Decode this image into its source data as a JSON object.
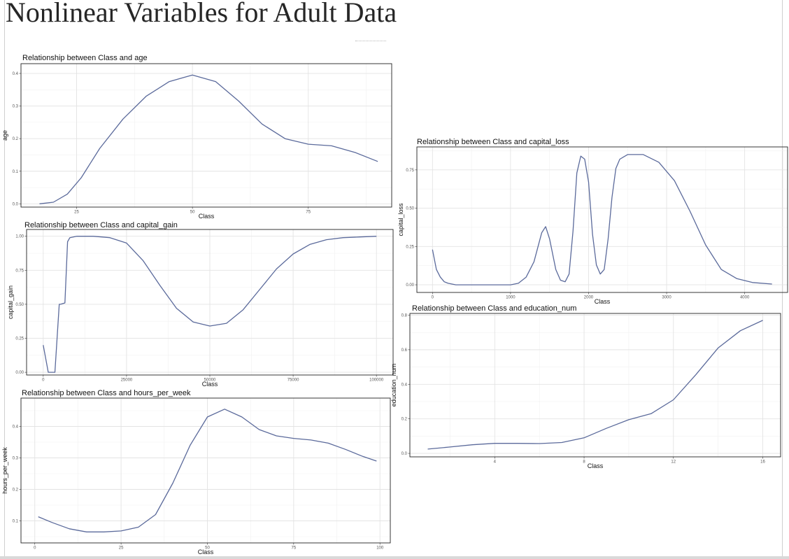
{
  "page": {
    "title": "Nonlinear Variables for Adult Data"
  },
  "chart_data": [
    {
      "id": "age",
      "type": "line",
      "title": "Relationship between Class and age",
      "xlabel": "Class",
      "ylabel": "age",
      "xlim": [
        13,
        93
      ],
      "ylim": [
        -0.01,
        0.43
      ],
      "xticks": [
        25,
        50,
        75
      ],
      "yticks": [
        0.0,
        0.1,
        0.2,
        0.3,
        0.4
      ],
      "xtick_labels": [
        "25",
        "50",
        "75"
      ],
      "ytick_labels": [
        "0.0",
        "0.1",
        "0.2",
        "0.3",
        "0.4"
      ],
      "grid": true,
      "series": [
        {
          "x": [
            17,
            20,
            23,
            26,
            30,
            35,
            40,
            45,
            50,
            55,
            60,
            65,
            70,
            75,
            80,
            85,
            90
          ],
          "y": [
            0.0,
            0.005,
            0.03,
            0.08,
            0.17,
            0.26,
            0.33,
            0.375,
            0.395,
            0.375,
            0.315,
            0.245,
            0.2,
            0.183,
            0.178,
            0.158,
            0.13
          ]
        }
      ]
    },
    {
      "id": "capital_gain",
      "type": "line",
      "title": "Relationship between Class and capital_gain",
      "xlabel": "Class",
      "ylabel": "capital_gain",
      "xlim": [
        -5000,
        105000
      ],
      "ylim": [
        -0.02,
        1.05
      ],
      "xticks": [
        0,
        25000,
        50000,
        75000,
        100000
      ],
      "yticks": [
        0.0,
        0.25,
        0.5,
        0.75,
        1.0
      ],
      "xtick_labels": [
        "0",
        "25000",
        "50000",
        "75000",
        "100000"
      ],
      "ytick_labels": [
        "0.00",
        "0.25",
        "0.50",
        "0.75",
        "1.00"
      ],
      "grid": true,
      "series": [
        {
          "x": [
            0,
            1500,
            3500,
            4800,
            5200,
            6500,
            7300,
            8000,
            10000,
            15000,
            20000,
            25000,
            30000,
            35000,
            40000,
            45000,
            50000,
            55000,
            60000,
            65000,
            70000,
            75000,
            80000,
            85000,
            90000,
            95000,
            100000
          ],
          "y": [
            0.2,
            0.0,
            0.0,
            0.5,
            0.5,
            0.51,
            0.96,
            0.99,
            1.0,
            1.0,
            0.99,
            0.95,
            0.82,
            0.64,
            0.47,
            0.37,
            0.34,
            0.36,
            0.46,
            0.61,
            0.76,
            0.87,
            0.94,
            0.975,
            0.99,
            0.995,
            1.0
          ]
        }
      ]
    },
    {
      "id": "hours_per_week",
      "type": "line",
      "title": "Relationship between Class and hours_per_week",
      "xlabel": "Class",
      "ylabel": "hours_per_week",
      "xlim": [
        -4,
        103
      ],
      "ylim": [
        0.03,
        0.49
      ],
      "xticks": [
        0,
        25,
        50,
        75,
        100
      ],
      "yticks": [
        0.1,
        0.2,
        0.3,
        0.4
      ],
      "xtick_labels": [
        "0",
        "25",
        "50",
        "75",
        "100"
      ],
      "ytick_labels": [
        "0.1",
        "0.2",
        "0.3",
        "0.4"
      ],
      "grid": true,
      "series": [
        {
          "x": [
            1,
            5,
            10,
            15,
            20,
            25,
            30,
            35,
            40,
            45,
            50,
            55,
            60,
            65,
            70,
            75,
            80,
            85,
            90,
            95,
            99
          ],
          "y": [
            0.113,
            0.095,
            0.075,
            0.065,
            0.065,
            0.068,
            0.08,
            0.12,
            0.22,
            0.34,
            0.43,
            0.455,
            0.43,
            0.39,
            0.37,
            0.362,
            0.357,
            0.347,
            0.327,
            0.305,
            0.29
          ]
        }
      ]
    },
    {
      "id": "capital_loss",
      "type": "line",
      "title": "Relationship between Class and capital_loss",
      "xlabel": "Class",
      "ylabel": "capital_loss",
      "xlim": [
        -200,
        4550
      ],
      "ylim": [
        -0.05,
        0.9
      ],
      "xticks": [
        0,
        1000,
        2000,
        3000,
        4000
      ],
      "yticks": [
        0.0,
        0.25,
        0.5,
        0.75
      ],
      "xtick_labels": [
        "0",
        "1000",
        "2000",
        "3000",
        "4000"
      ],
      "ytick_labels": [
        "0.00",
        "0.25",
        "0.50",
        "0.75"
      ],
      "grid": true,
      "series": [
        {
          "x": [
            0,
            50,
            100,
            150,
            200,
            300,
            500,
            800,
            1000,
            1100,
            1200,
            1300,
            1400,
            1450,
            1500,
            1580,
            1640,
            1700,
            1750,
            1800,
            1850,
            1900,
            1950,
            2000,
            2050,
            2100,
            2150,
            2200,
            2250,
            2300,
            2350,
            2400,
            2500,
            2700,
            2900,
            3100,
            3300,
            3500,
            3700,
            3900,
            4100,
            4350
          ],
          "y": [
            0.23,
            0.1,
            0.05,
            0.02,
            0.01,
            0.0,
            0.0,
            0.0,
            0.0,
            0.01,
            0.05,
            0.15,
            0.34,
            0.38,
            0.3,
            0.1,
            0.03,
            0.02,
            0.07,
            0.35,
            0.73,
            0.84,
            0.82,
            0.67,
            0.33,
            0.13,
            0.07,
            0.1,
            0.3,
            0.57,
            0.76,
            0.82,
            0.85,
            0.85,
            0.8,
            0.68,
            0.48,
            0.26,
            0.1,
            0.04,
            0.015,
            0.005
          ]
        }
      ]
    },
    {
      "id": "education_num",
      "type": "line",
      "title": "Relationship between Class and education_num",
      "xlabel": "Class",
      "ylabel": "education_num",
      "xlim": [
        0.2,
        16.8
      ],
      "ylim": [
        -0.02,
        0.81
      ],
      "xticks": [
        4,
        8,
        12,
        16
      ],
      "yticks": [
        0.0,
        0.2,
        0.4,
        0.6,
        0.8
      ],
      "xtick_labels": [
        "4",
        "8",
        "12",
        "16"
      ],
      "ytick_labels": [
        "0.0",
        "0.2",
        "0.4",
        "0.6",
        "0.8"
      ],
      "grid": true,
      "series": [
        {
          "x": [
            1,
            2,
            3,
            4,
            5,
            6,
            7,
            8,
            9,
            10,
            11,
            12,
            13,
            14,
            15,
            16
          ],
          "y": [
            0.025,
            0.037,
            0.05,
            0.058,
            0.058,
            0.057,
            0.063,
            0.09,
            0.145,
            0.195,
            0.23,
            0.31,
            0.455,
            0.61,
            0.71,
            0.77
          ]
        }
      ]
    }
  ]
}
